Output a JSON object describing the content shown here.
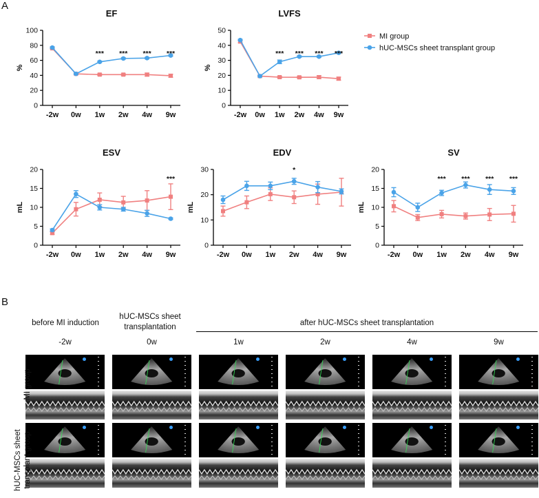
{
  "panel_a_label": "A",
  "panel_b_label": "B",
  "legend": {
    "mi": "MI group",
    "huc": "hUC-MSCs sheet transplant group"
  },
  "colors": {
    "mi": "#f08080",
    "huc": "#4aa3e8",
    "axis": "#000000"
  },
  "chart_data": [
    {
      "type": "line",
      "title": "EF",
      "ylabel": "%",
      "ylim": [
        0,
        100
      ],
      "yticks": [
        0,
        20,
        40,
        60,
        80,
        100
      ],
      "categories": [
        "-2w",
        "0w",
        "1w",
        "2w",
        "4w",
        "9w"
      ],
      "series": [
        {
          "name": "MI group",
          "values": [
            76,
            42,
            41,
            41,
            41,
            39.5
          ],
          "err": [
            1,
            1,
            1,
            1,
            2,
            2
          ]
        },
        {
          "name": "hUC-MSCs sheet transplant group",
          "values": [
            77,
            42,
            58,
            62.5,
            63,
            66.5
          ],
          "err": [
            1,
            1,
            1,
            1,
            1,
            1
          ]
        }
      ],
      "annotations": [
        "",
        "",
        "***",
        "***",
        "***",
        "***"
      ]
    },
    {
      "type": "line",
      "title": "LVFS",
      "ylabel": "%",
      "ylim": [
        0,
        50
      ],
      "yticks": [
        0,
        10,
        20,
        30,
        40,
        50
      ],
      "categories": [
        "-2w",
        "0w",
        "1w",
        "2w",
        "4w",
        "9w"
      ],
      "series": [
        {
          "name": "MI group",
          "values": [
            42.5,
            19.5,
            18.8,
            18.7,
            18.8,
            17.8
          ],
          "err": [
            0.8,
            0.5,
            0.5,
            0.5,
            1,
            1
          ]
        },
        {
          "name": "hUC-MSCs sheet transplant group",
          "values": [
            43.5,
            19.5,
            29,
            32.5,
            32.5,
            35
          ],
          "err": [
            0.5,
            0.5,
            1.2,
            0.5,
            0.5,
            0.5
          ]
        }
      ],
      "annotations": [
        "",
        "",
        "***",
        "***",
        "***",
        "***"
      ]
    },
    {
      "type": "line",
      "title": "ESV",
      "ylabel": "mL",
      "ylim": [
        0,
        20
      ],
      "yticks": [
        0,
        5,
        10,
        15,
        20
      ],
      "categories": [
        "-2w",
        "0w",
        "1w",
        "2w",
        "4w",
        "9w"
      ],
      "series": [
        {
          "name": "MI group",
          "values": [
            3.2,
            9.5,
            12,
            11.3,
            11.8,
            12.8
          ],
          "err": [
            0.3,
            1.8,
            1.8,
            1.6,
            2.6,
            3.4
          ]
        },
        {
          "name": "hUC-MSCs sheet transplant group",
          "values": [
            4,
            13.5,
            10,
            9.5,
            8.4,
            7
          ],
          "err": [
            0.3,
            0.9,
            0.7,
            0.5,
            0.8,
            0.2
          ]
        }
      ],
      "annotations": [
        "",
        "",
        "",
        "",
        "",
        "***"
      ]
    },
    {
      "type": "line",
      "title": "EDV",
      "ylabel": "mL",
      "ylim": [
        0,
        30
      ],
      "yticks": [
        0,
        10,
        20,
        30
      ],
      "categories": [
        "-2w",
        "0w",
        "1w",
        "2w",
        "4w",
        "9w"
      ],
      "series": [
        {
          "name": "MI group",
          "values": [
            13.5,
            17,
            20.2,
            19,
            20.2,
            21
          ],
          "err": [
            2,
            2.5,
            2.5,
            2.5,
            4,
            5.5
          ]
        },
        {
          "name": "hUC-MSCs sheet transplant group",
          "values": [
            18,
            23.5,
            23.5,
            25.3,
            23,
            21.3
          ],
          "err": [
            1.5,
            1.8,
            1.5,
            1.2,
            2.2,
            1
          ]
        }
      ],
      "annotations": [
        "",
        "",
        "",
        "*",
        "",
        ""
      ]
    },
    {
      "type": "line",
      "title": "SV",
      "ylabel": "mL",
      "ylim": [
        0,
        20
      ],
      "yticks": [
        0,
        5,
        10,
        15,
        20
      ],
      "categories": [
        "-2w",
        "0w",
        "1w",
        "2w",
        "4w",
        "9w"
      ],
      "series": [
        {
          "name": "MI group",
          "values": [
            10.3,
            7.3,
            8.2,
            7.7,
            8.1,
            8.3
          ],
          "err": [
            1.5,
            0.8,
            1,
            0.8,
            1.6,
            2.2
          ]
        },
        {
          "name": "hUC-MSCs sheet transplant group",
          "values": [
            14,
            10,
            13.8,
            15.9,
            14.7,
            14.3
          ],
          "err": [
            1.2,
            1.1,
            0.7,
            0.8,
            1.3,
            0.9
          ]
        }
      ],
      "annotations": [
        "",
        "",
        "***",
        "***",
        "***",
        "***"
      ]
    }
  ],
  "panel_b": {
    "col_headers": [
      "before MI induction",
      "hUC-MSCs sheet transplantation",
      "after hUC-MSCs sheet transplantation"
    ],
    "timepoints": [
      "-2w",
      "0w",
      "1w",
      "2w",
      "4w",
      "9w"
    ],
    "rows": [
      "MI group",
      "hUC-MSCs sheet transplant group"
    ],
    "row_label_lines": [
      [
        "MI group"
      ],
      [
        "hUC-MSCs sheet",
        "transplant group"
      ]
    ]
  }
}
